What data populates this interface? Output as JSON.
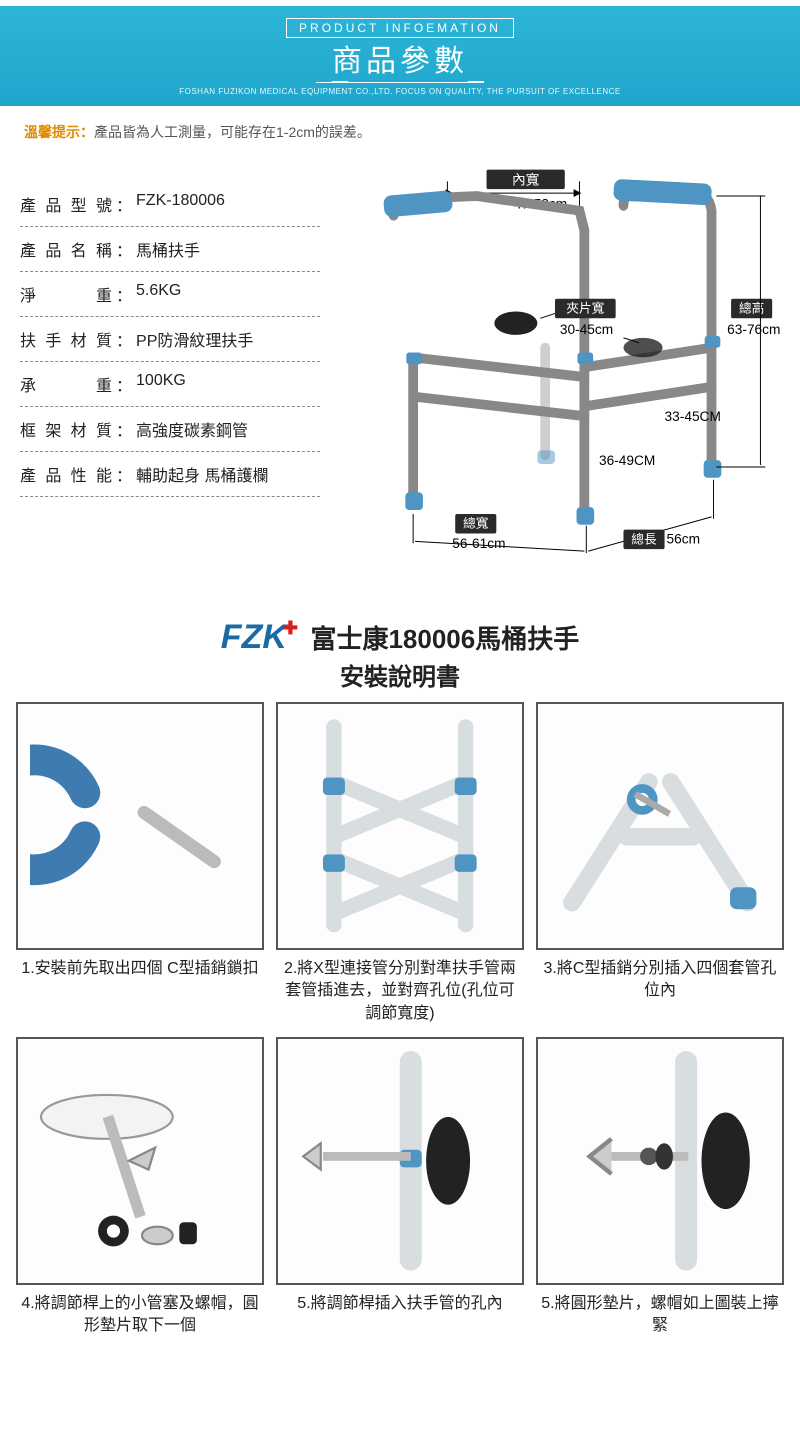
{
  "banner": {
    "eyebrow": "PRODUCT INFOEMATION",
    "title": "商品參數",
    "subtitle": "FOSHAN FUZIKON MEDICAL EQUIPMENT CO.,LTD. FOCUS ON QUALITY, THE PURSUIT OF EXCELLENCE"
  },
  "note": {
    "label": "溫馨提示：",
    "text": "產品皆為人工測量，可能存在1-2cm的誤差。"
  },
  "specs": [
    {
      "label": "產品型號",
      "value": "FZK-180006"
    },
    {
      "label": "產品名稱",
      "value": "馬桶扶手"
    },
    {
      "label": "淨　　重",
      "value": "5.6KG"
    },
    {
      "label": "扶手材質",
      "value": "PP防滑紋理扶手"
    },
    {
      "label": "承　　重",
      "value": "100KG"
    },
    {
      "label": "框架材質",
      "value": "高強度碳素鋼管"
    },
    {
      "label": "產品性能",
      "value": "輔助起身 馬桶護欄"
    }
  ],
  "dimensions": {
    "inner_width_label": "內寬",
    "inner_width": "47-52cm",
    "clip_width_label": "夾片寬",
    "clip_width": "30-45cm",
    "total_height_label": "總高",
    "total_height": "63-76cm",
    "leg_upper": "33-45CM",
    "leg_lower": "36-49CM",
    "total_width_label": "總寬",
    "total_width": "56-61cm",
    "total_length_label": "總長",
    "total_length": "56cm"
  },
  "install": {
    "brand": "FZK",
    "title_line1": "富士康180006馬桶扶手",
    "title_line2": "安裝說明書",
    "steps": [
      "1.安裝前先取出四個\nC型插銷鎖扣",
      "2.將X型連接管分別對準扶手管兩套管插進去，並對齊孔位(孔位可調節寬度)",
      "3.將C型插銷分別插入四個套管孔位內",
      "4.將調節桿上的小管塞及螺帽，圓形墊片取下一個",
      "5.將調節桿插入扶手管的孔內",
      "5.將圓形墊片，螺帽如上圖裝上擰緊"
    ]
  },
  "colors": {
    "banner_bg": "#1fa6cd",
    "accent_blue": "#4f95c3",
    "frame_white": "#f5f7f8",
    "orange": "#e08a00"
  }
}
